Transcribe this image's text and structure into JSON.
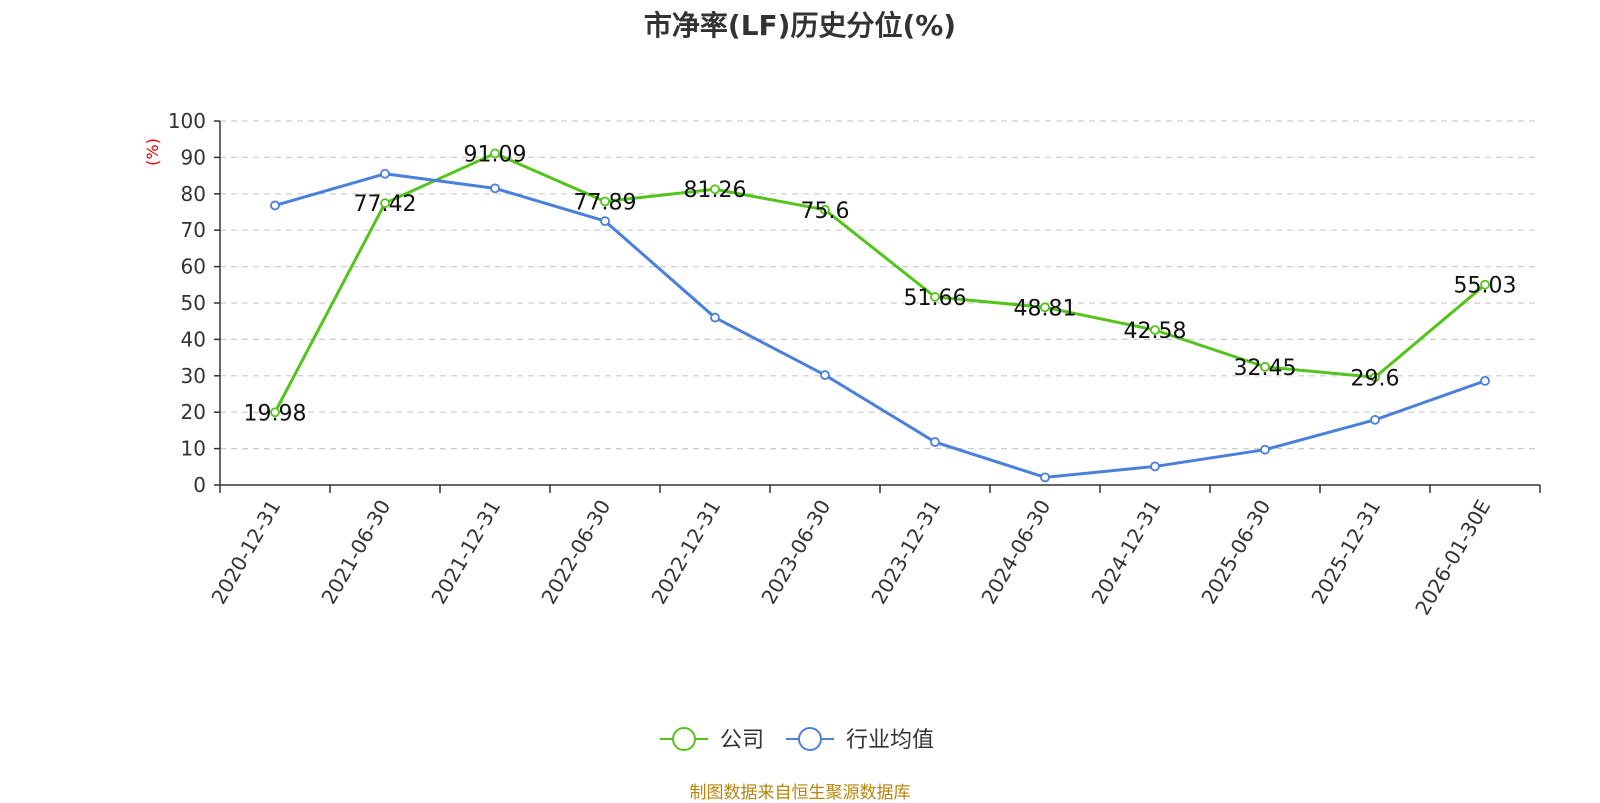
{
  "chart_data": {
    "type": "line",
    "title": "市净率(LF)历史分位(%)",
    "ylabel": "(%)",
    "xlabel": "",
    "ylim": [
      0,
      100
    ],
    "yticks": [
      0,
      10,
      20,
      30,
      40,
      50,
      60,
      70,
      80,
      90,
      100
    ],
    "grid": true,
    "legend_position": "bottom",
    "categories": [
      "2020-12-31",
      "2021-06-30",
      "2021-12-31",
      "2022-06-30",
      "2022-12-31",
      "2023-06-30",
      "2023-12-31",
      "2024-06-30",
      "2024-12-31",
      "2025-06-30",
      "2025-12-31",
      "2026-01-30E"
    ],
    "series": [
      {
        "name": "公司",
        "color": "#52c41a",
        "show_labels": true,
        "values": [
          19.98,
          77.42,
          91.09,
          77.89,
          81.26,
          75.6,
          51.66,
          48.81,
          42.58,
          32.45,
          29.6,
          55.03
        ]
      },
      {
        "name": "行业均值",
        "color": "#4a7fdb",
        "show_labels": false,
        "values": [
          76.8,
          85.5,
          81.5,
          72.5,
          46.0,
          30.2,
          11.8,
          2.1,
          5.1,
          9.7,
          17.9,
          28.6
        ]
      }
    ],
    "source": "制图数据来自恒生聚源数据库"
  }
}
